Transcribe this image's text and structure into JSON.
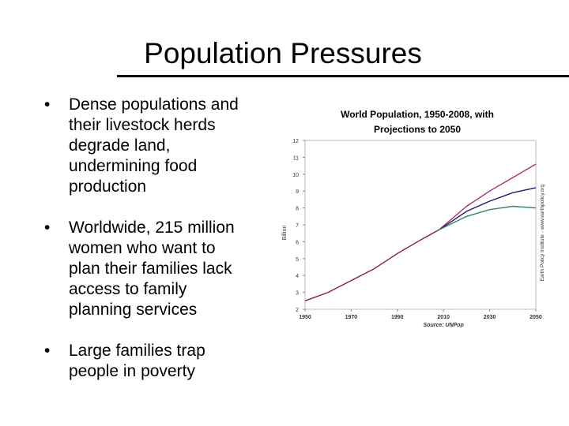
{
  "slide": {
    "title": "Population Pressures",
    "bullets": [
      "Dense populations and their livestock herds degrade land, undermining food production",
      "Worldwide, 215 million women who want to plan their families lack access to family planning services",
      "Large families trap people in poverty"
    ]
  },
  "chart_data": {
    "type": "line",
    "title": "World Population, 1950-2008, with Projections to 2050",
    "ylabel": "Billion",
    "xlabel": "",
    "source": "Source: UNPop",
    "credit": "Earth Policy Institute - www.earthpolicy.org",
    "xlim": [
      1950,
      2050
    ],
    "ylim": [
      2,
      12
    ],
    "xticks": [
      1950,
      1970,
      1990,
      2010,
      2030,
      2050
    ],
    "yticks": [
      2,
      3,
      4,
      5,
      6,
      7,
      8,
      9,
      10,
      11,
      12
    ],
    "grid": false,
    "legend": "none",
    "series": [
      {
        "color": "#8b1a4a",
        "x": [
          1950,
          1960,
          1970,
          1980,
          1990,
          2000,
          2008
        ],
        "values": [
          2.5,
          3.0,
          3.7,
          4.4,
          5.3,
          6.1,
          6.7
        ]
      },
      {
        "color": "#b0306a",
        "x": [
          2008,
          2020,
          2030,
          2040,
          2050
        ],
        "values": [
          6.7,
          8.1,
          9.0,
          9.8,
          10.6
        ]
      },
      {
        "color": "#1a1a6e",
        "x": [
          2008,
          2020,
          2030,
          2040,
          2050
        ],
        "values": [
          6.7,
          7.8,
          8.4,
          8.9,
          9.2
        ]
      },
      {
        "color": "#2e8b57",
        "x": [
          2008,
          2020,
          2030,
          2040,
          2050
        ],
        "values": [
          6.7,
          7.5,
          7.9,
          8.1,
          8.0
        ]
      }
    ]
  }
}
